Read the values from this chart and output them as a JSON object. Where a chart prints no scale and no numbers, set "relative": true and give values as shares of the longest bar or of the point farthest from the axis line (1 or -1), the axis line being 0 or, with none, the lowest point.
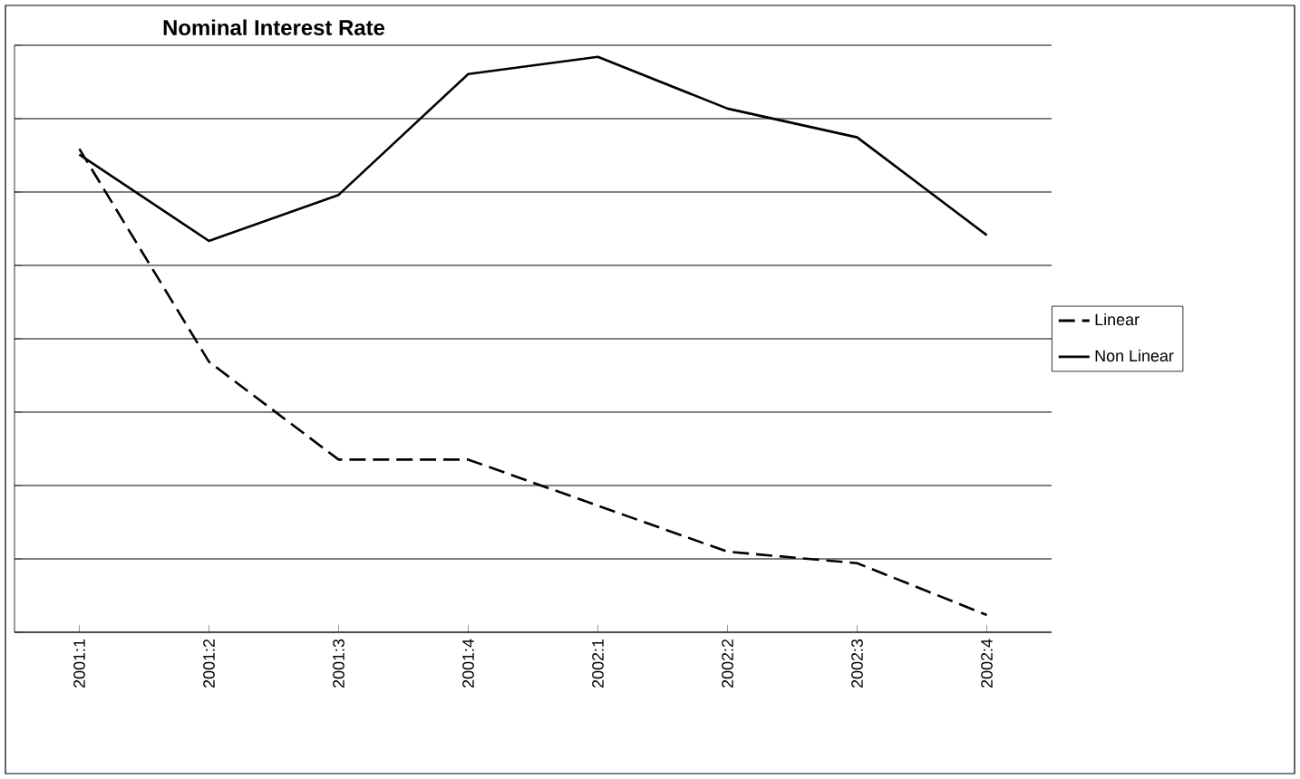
{
  "chart_data": {
    "type": "line",
    "title": "Nominal Interest Rate",
    "relative": true,
    "categories": [
      "2001:1",
      "2001:2",
      "2001:3",
      "2001:4",
      "2002:1",
      "2002:2",
      "2002:3",
      "2002:4"
    ],
    "series": [
      {
        "name": "Linear",
        "color": "#000000",
        "line_style": "dashed",
        "values": [
          0.84,
          0.47,
          0.3,
          0.3,
          0.22,
          0.14,
          0.12,
          0.03
        ]
      },
      {
        "name": "Non Linear",
        "color": "#000000",
        "line_style": "solid",
        "values": [
          0.83,
          0.68,
          0.76,
          0.97,
          1.0,
          0.91,
          0.86,
          0.69
        ]
      }
    ],
    "grid": "y",
    "legend": "right",
    "marker": "none"
  }
}
